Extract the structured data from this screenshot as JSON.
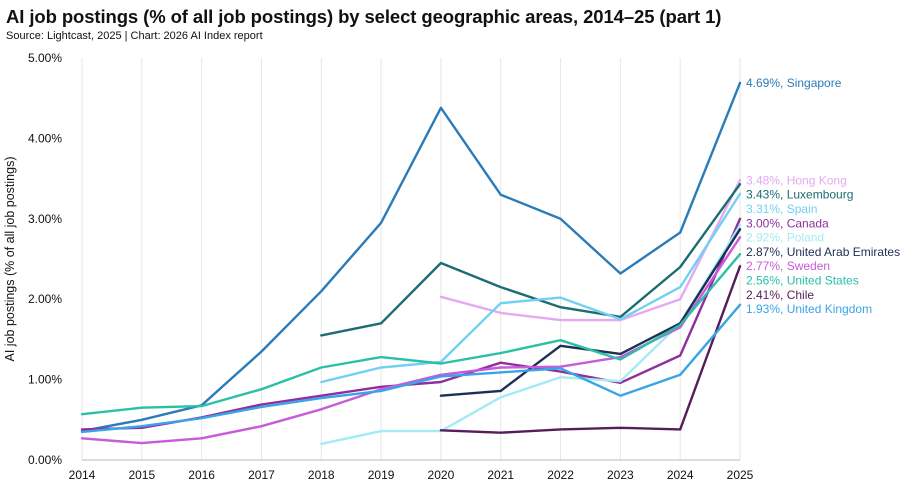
{
  "title": "AI job postings (% of all job postings) by select geographic areas, 2014–25 (part 1)",
  "subtitle": "Source: Lightcast, 2025 | Chart: 2026 AI Index report",
  "chart_data": {
    "type": "line",
    "ylabel": "AI job postings (% of all job postings)",
    "xlabel": "",
    "x": [
      2014,
      2015,
      2016,
      2017,
      2018,
      2019,
      2020,
      2021,
      2022,
      2023,
      2024,
      2025
    ],
    "x_tick_labels": [
      "2014",
      "2015",
      "2016",
      "2017",
      "2018",
      "2019",
      "2020",
      "2021",
      "2022",
      "2023",
      "2024",
      "2025"
    ],
    "y_ticks": [
      0,
      1,
      2,
      3,
      4,
      5
    ],
    "y_tick_labels": [
      "0.00%",
      "1.00%",
      "2.00%",
      "3.00%",
      "4.00%",
      "5.00%"
    ],
    "ylim": [
      0,
      5
    ],
    "grid": "vertical",
    "series": [
      {
        "name": "Singapore",
        "color": "#2b7bb9",
        "label": "4.69%, Singapore",
        "values": [
          0.36,
          0.5,
          0.68,
          1.35,
          2.1,
          2.95,
          4.38,
          3.3,
          3.0,
          2.32,
          2.83,
          4.69
        ]
      },
      {
        "name": "Hong Kong",
        "color": "#e5a9f2",
        "label": "3.48%, Hong Kong",
        "values": [
          null,
          null,
          null,
          null,
          null,
          null,
          2.03,
          1.83,
          1.74,
          1.74,
          2.0,
          3.48
        ]
      },
      {
        "name": "Luxembourg",
        "color": "#1d6c72",
        "label": "3.43%, Luxembourg",
        "values": [
          null,
          null,
          null,
          null,
          1.55,
          1.7,
          2.45,
          2.15,
          1.9,
          1.78,
          2.4,
          3.43
        ]
      },
      {
        "name": "Spain",
        "color": "#72d0f2",
        "label": "3.31%, Spain",
        "values": [
          null,
          null,
          null,
          null,
          0.97,
          1.15,
          1.22,
          1.95,
          2.02,
          1.75,
          2.15,
          3.31
        ]
      },
      {
        "name": "Canada",
        "color": "#8f2f9e",
        "label": "3.00%, Canada",
        "values": [
          0.38,
          0.4,
          0.53,
          0.69,
          0.8,
          0.91,
          0.97,
          1.21,
          1.1,
          0.96,
          1.3,
          3.0
        ]
      },
      {
        "name": "Poland",
        "color": "#a3ecf5",
        "label": "2.92%, Poland",
        "values": [
          null,
          null,
          null,
          null,
          0.2,
          0.36,
          0.36,
          0.78,
          1.03,
          0.98,
          1.7,
          2.92
        ]
      },
      {
        "name": "United Arab Emirates",
        "color": "#1d2f55",
        "label": "2.87%, United Arab Emirates",
        "values": [
          null,
          null,
          null,
          null,
          null,
          null,
          0.8,
          0.86,
          1.42,
          1.32,
          1.7,
          2.87
        ]
      },
      {
        "name": "Sweden",
        "color": "#c75bd9",
        "label": "2.77%, Sweden",
        "values": [
          0.27,
          0.21,
          0.27,
          0.42,
          0.63,
          0.88,
          1.06,
          1.15,
          1.16,
          1.28,
          1.65,
          2.77
        ]
      },
      {
        "name": "United States",
        "color": "#2bbfa8",
        "label": "2.56%, United States",
        "values": [
          0.57,
          0.65,
          0.67,
          0.88,
          1.15,
          1.28,
          1.2,
          1.33,
          1.49,
          1.25,
          1.68,
          2.56
        ]
      },
      {
        "name": "Chile",
        "color": "#561e59",
        "label": "2.41%, Chile",
        "values": [
          null,
          null,
          null,
          null,
          null,
          null,
          0.37,
          0.34,
          0.38,
          0.4,
          0.38,
          2.41
        ]
      },
      {
        "name": "United Kingdom",
        "color": "#3aa4e8",
        "label": "1.93%, United Kingdom",
        "values": [
          0.35,
          0.42,
          0.52,
          0.66,
          0.77,
          0.86,
          1.04,
          1.09,
          1.14,
          0.8,
          1.06,
          1.93
        ]
      }
    ]
  }
}
